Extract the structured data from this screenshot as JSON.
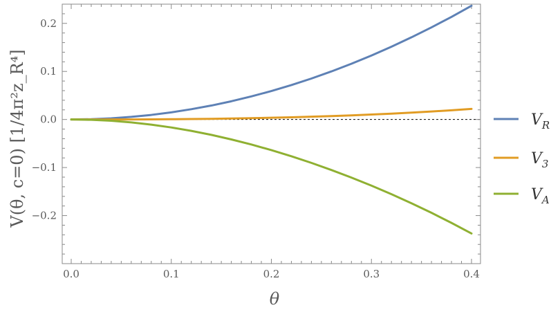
{
  "chart_data": {
    "type": "line",
    "title": "",
    "xlabel": "θ",
    "ylabel": "V(θ, c=0)  [1/4π²z_R⁴]",
    "xlim": [
      0,
      0.4
    ],
    "ylim": [
      -0.3,
      0.24
    ],
    "x_ticks": [
      "0.0",
      "0.1",
      "0.2",
      "0.3",
      "0.4"
    ],
    "y_ticks": [
      "0.2",
      "0.1",
      "0.0",
      "−0.1",
      "−0.2"
    ],
    "y_tick_values": [
      0.2,
      0.1,
      0.0,
      -0.1,
      -0.2
    ],
    "x_tick_values": [
      0.0,
      0.1,
      0.2,
      0.3,
      0.4
    ],
    "zero_line": "dashed",
    "grid": false,
    "legend_position": "right",
    "x": [
      0.0,
      0.02,
      0.04,
      0.06,
      0.08,
      0.1,
      0.12,
      0.14,
      0.16,
      0.18,
      0.2,
      0.22,
      0.24,
      0.26,
      0.28,
      0.3,
      0.32,
      0.34,
      0.36,
      0.38,
      0.4
    ],
    "series": [
      {
        "name": "V_R",
        "label_main": "V",
        "label_sub": "R",
        "color": "#5e81b5",
        "values": [
          0.0,
          0.0006,
          0.0024,
          0.0054,
          0.0095,
          0.0148,
          0.0214,
          0.029,
          0.0379,
          0.048,
          0.0592,
          0.0716,
          0.0852,
          0.1,
          0.116,
          0.1331,
          0.1515,
          0.171,
          0.1917,
          0.2135,
          0.2366
        ]
      },
      {
        "name": "V_3",
        "label_main": "V",
        "label_sub": "3",
        "color": "#e19c24",
        "values": [
          0.0,
          0.0,
          0.0,
          0.0001,
          0.0003,
          0.0006,
          0.0009,
          0.0014,
          0.002,
          0.0028,
          0.0036,
          0.0046,
          0.0058,
          0.0071,
          0.0086,
          0.0103,
          0.0122,
          0.0143,
          0.0166,
          0.0192,
          0.022
        ]
      },
      {
        "name": "V_A",
        "label_main": "V",
        "label_sub": "A",
        "color": "#8fb032",
        "values": [
          0.0,
          -0.0007,
          -0.0027,
          -0.0061,
          -0.0107,
          -0.0166,
          -0.0237,
          -0.032,
          -0.0415,
          -0.0521,
          -0.0638,
          -0.0765,
          -0.0903,
          -0.1051,
          -0.1209,
          -0.1377,
          -0.1555,
          -0.1743,
          -0.1942,
          -0.2152,
          -0.2372
        ]
      }
    ]
  }
}
